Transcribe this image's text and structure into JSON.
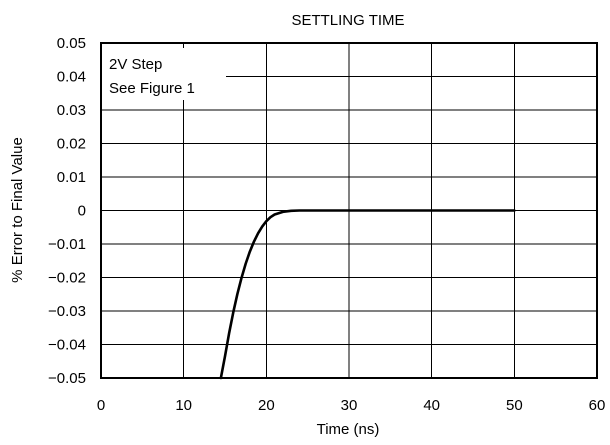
{
  "chart_data": {
    "type": "line",
    "title": "SETTLING TIME",
    "xlabel": "Time (ns)",
    "ylabel": "% Error to Final Value",
    "xlim": [
      0,
      60
    ],
    "ylim": [
      -0.05,
      0.05
    ],
    "xticks": [
      0,
      10,
      20,
      30,
      40,
      50,
      60
    ],
    "yticks": [
      0.05,
      0.04,
      0.03,
      0.02,
      0.01,
      0,
      -0.01,
      -0.02,
      -0.03,
      -0.04,
      -0.05
    ],
    "xtick_labels": [
      "0",
      "10",
      "20",
      "30",
      "40",
      "50",
      "60"
    ],
    "ytick_labels": [
      "0.05",
      "0.04",
      "0.03",
      "0.02",
      "0.01",
      "0",
      "−0.01",
      "−0.02",
      "−0.03",
      "−0.04",
      "−0.05"
    ],
    "grid": true,
    "annotation": [
      "2V Step",
      "See Figure 1"
    ],
    "series": [
      {
        "x": [
          14.5,
          15.0,
          15.5,
          16.0,
          16.5,
          17.0,
          17.5,
          18.0,
          18.5,
          19.0,
          19.5,
          20.0,
          20.5,
          21.0,
          22.0,
          23.0,
          24.0,
          25.0,
          30.0,
          40.0,
          50.0
        ],
        "values": [
          -0.05,
          -0.0435,
          -0.0366,
          -0.0304,
          -0.0249,
          -0.0201,
          -0.0159,
          -0.0123,
          -0.0093,
          -0.0068,
          -0.0048,
          -0.0032,
          -0.002,
          -0.0012,
          -0.0004,
          -0.0001,
          0.0,
          0.0,
          0.0,
          0.0,
          0.0
        ]
      }
    ]
  }
}
